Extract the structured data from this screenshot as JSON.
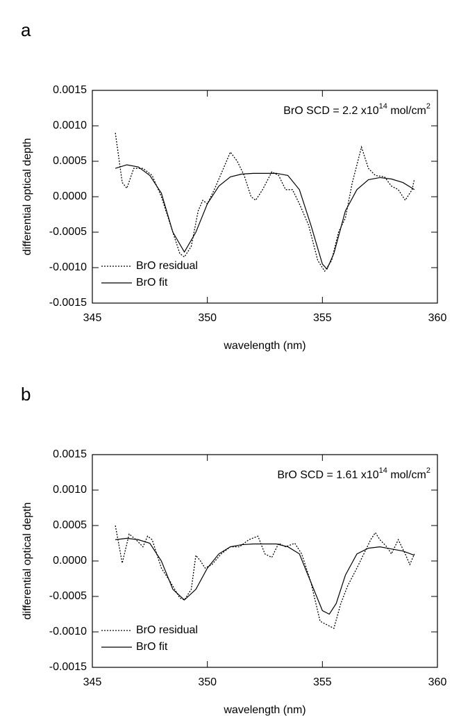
{
  "chart_data": [
    {
      "type": "line",
      "panel": "a",
      "x_label": "wavelength (nm)",
      "y_label": "differential optical depth",
      "annotation": [
        "BrO SCD = 2.2 x10",
        "14",
        " mol/cm",
        "2"
      ],
      "xlim": [
        345,
        360
      ],
      "xticks": [
        345,
        350,
        355,
        360
      ],
      "ylim": [
        -0.0015,
        0.0015
      ],
      "yticks": [
        {
          "value": -0.0015,
          "label": "-0.0015"
        },
        {
          "value": -0.001,
          "label": "-0.0010"
        },
        {
          "value": -0.0005,
          "label": "-0.0005"
        },
        {
          "value": 0,
          "label": "0.0000"
        },
        {
          "value": 0.0005,
          "label": "0.0005"
        },
        {
          "value": 0.001,
          "label": "0.0010"
        },
        {
          "value": 0.0015,
          "label": "0.0015"
        }
      ],
      "legend": "lower left",
      "series": [
        {
          "name": "BrO residual",
          "color": "#000000",
          "dash": "dotted",
          "x": [
            346.0,
            346.3,
            346.5,
            346.8,
            347.2,
            347.6,
            348.0,
            348.4,
            348.8,
            349.0,
            349.3,
            349.6,
            349.8,
            350.0,
            350.3,
            350.7,
            351.0,
            351.3,
            351.6,
            351.9,
            352.1,
            352.4,
            352.8,
            353.1,
            353.4,
            353.7,
            354.0,
            354.4,
            354.8,
            355.1,
            355.4,
            355.7,
            356.0,
            356.3,
            356.7,
            357.0,
            357.3,
            357.7,
            358.0,
            358.3,
            358.6,
            358.9,
            359.0
          ],
          "values": [
            0.0009,
            0.0002,
            0.00012,
            0.0004,
            0.0004,
            0.0003,
            0.0,
            -0.0004,
            -0.0008,
            -0.00085,
            -0.0007,
            -0.0002,
            -5e-05,
            -0.0001,
            0.0001,
            0.0004,
            0.00063,
            0.0005,
            0.0003,
            0.0,
            -5e-05,
            0.0001,
            0.00035,
            0.0003,
            0.0001,
            0.0001,
            -0.0001,
            -0.0004,
            -0.0009,
            -0.00105,
            -0.0009,
            -0.0005,
            -0.0003,
            0.0002,
            0.0007,
            0.0004,
            0.0003,
            0.00028,
            0.00015,
            0.0001,
            -5e-05,
            0.0001,
            0.00025
          ]
        },
        {
          "name": "BrO fit",
          "color": "#000000",
          "dash": "solid",
          "x": [
            346.0,
            346.5,
            347.0,
            347.5,
            348.0,
            348.5,
            349.0,
            349.5,
            350.0,
            350.5,
            351.0,
            351.5,
            352.0,
            352.5,
            353.0,
            353.5,
            354.0,
            354.5,
            355.0,
            355.2,
            355.5,
            356.0,
            356.5,
            357.0,
            357.5,
            358.0,
            358.5,
            359.0
          ],
          "values": [
            0.0004,
            0.00045,
            0.00042,
            0.0003,
            5e-05,
            -0.0005,
            -0.00078,
            -0.0005,
            -0.0001,
            0.00015,
            0.00028,
            0.00032,
            0.00033,
            0.00033,
            0.00033,
            0.0003,
            0.0001,
            -0.0004,
            -0.00095,
            -0.00102,
            -0.0008,
            -0.0002,
            0.0001,
            0.00024,
            0.00027,
            0.00025,
            0.0002,
            0.0001
          ]
        }
      ]
    },
    {
      "type": "line",
      "panel": "b",
      "x_label": "wavelength (nm)",
      "y_label": "differential optical depth",
      "annotation": [
        "BrO SCD = 1.61 x10",
        "14",
        " mol/cm",
        "2"
      ],
      "xlim": [
        345,
        360
      ],
      "xticks": [
        345,
        350,
        355,
        360
      ],
      "ylim": [
        -0.0015,
        0.0015
      ],
      "yticks": [
        {
          "value": -0.0015,
          "label": "-0.0015"
        },
        {
          "value": -0.001,
          "label": "-0.0010"
        },
        {
          "value": -0.0005,
          "label": "-0.0005"
        },
        {
          "value": 0,
          "label": "0.0000"
        },
        {
          "value": 0.0005,
          "label": "0.0005"
        },
        {
          "value": 0.001,
          "label": "0.0010"
        },
        {
          "value": 0.0015,
          "label": "0.0015"
        }
      ],
      "legend": "lower left",
      "series": [
        {
          "name": "BrO residual",
          "color": "#000000",
          "dash": "dotted",
          "x": [
            346.0,
            346.3,
            346.6,
            346.9,
            347.2,
            347.4,
            347.6,
            348.0,
            348.4,
            348.8,
            349.0,
            349.3,
            349.5,
            349.7,
            349.9,
            350.2,
            350.6,
            351.0,
            351.4,
            351.8,
            352.2,
            352.5,
            352.8,
            353.1,
            353.4,
            353.8,
            354.1,
            354.5,
            354.9,
            355.2,
            355.5,
            355.8,
            356.1,
            356.5,
            356.8,
            357.1,
            357.3,
            357.5,
            357.8,
            358.0,
            358.3,
            358.6,
            358.8,
            359.0
          ],
          "values": [
            0.0005,
            -3e-05,
            0.00038,
            0.0003,
            0.0002,
            0.00035,
            0.0003,
            -0.0001,
            -0.0003,
            -0.00052,
            -0.00055,
            -0.0004,
            8e-05,
            0.0,
            -0.0001,
            -5e-05,
            0.0001,
            0.0002,
            0.0002,
            0.0003,
            0.00035,
            0.0001,
            5e-05,
            0.00025,
            0.0002,
            0.00025,
            0.0001,
            -0.0003,
            -0.00085,
            -0.0009,
            -0.00095,
            -0.0006,
            -0.00035,
            -0.0001,
            0.0001,
            0.0003,
            0.0004,
            0.0003,
            0.0002,
            0.0001,
            0.0003,
            0.0001,
            -5e-05,
            0.0001
          ]
        },
        {
          "name": "BrO fit",
          "color": "#000000",
          "dash": "solid",
          "x": [
            346.0,
            346.5,
            347.0,
            347.5,
            348.0,
            348.5,
            349.0,
            349.5,
            350.0,
            350.5,
            351.0,
            351.5,
            352.0,
            352.5,
            353.0,
            353.5,
            354.0,
            354.5,
            355.0,
            355.3,
            355.6,
            356.0,
            356.5,
            357.0,
            357.5,
            358.0,
            358.5,
            359.0
          ],
          "values": [
            0.0003,
            0.00032,
            0.0003,
            0.00025,
            0.0,
            -0.0004,
            -0.00055,
            -0.0004,
            -0.0001,
            0.0001,
            0.0002,
            0.00023,
            0.00024,
            0.00024,
            0.00024,
            0.0002,
            0.0001,
            -0.0003,
            -0.0007,
            -0.00075,
            -0.0006,
            -0.0002,
            0.0001,
            0.00018,
            0.0002,
            0.00017,
            0.00014,
            8e-05
          ]
        }
      ]
    }
  ]
}
